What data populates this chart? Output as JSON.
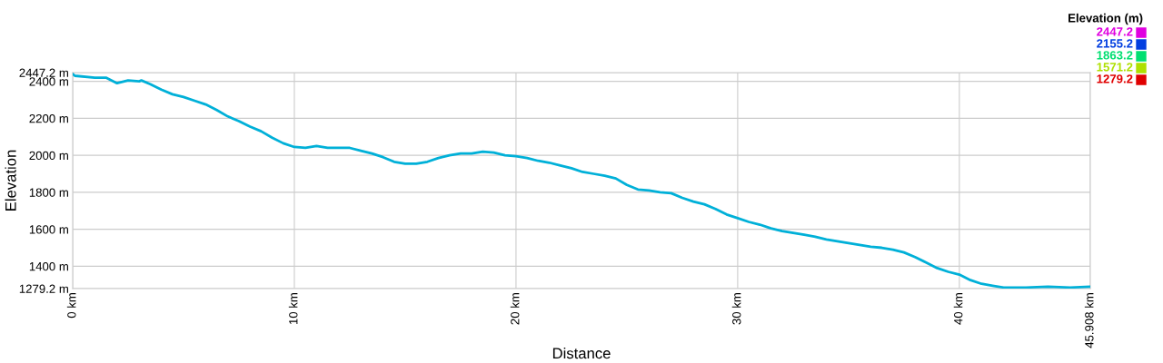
{
  "chart_data": {
    "type": "line",
    "xlabel": "Distance",
    "ylabel": "Elevation",
    "clabel": "Elevation (m)",
    "clim": [
      1279.2,
      2447.2
    ],
    "cticks": [
      2447.2,
      2155.2,
      1863.2,
      1571.2,
      1279.2
    ],
    "colors": [
      "#e000e0",
      "#0040e0",
      "#00e070",
      "#b0e000",
      "#e00000"
    ],
    "xlim": [
      0,
      45.908
    ],
    "xticks": [
      {
        "value": 0,
        "label": "0 km"
      },
      {
        "value": 10,
        "label": "10 km"
      },
      {
        "value": 20,
        "label": "20 km"
      },
      {
        "value": 30,
        "label": "30 km"
      },
      {
        "value": 40,
        "label": "40 km"
      },
      {
        "value": 45.908,
        "label": "45.908 km"
      }
    ],
    "ylim": [
      1279.2,
      2447.2
    ],
    "yticks": [
      {
        "value": 1279.2,
        "label": "1279.2 m"
      },
      {
        "value": 1400,
        "label": "1400 m"
      },
      {
        "value": 1600,
        "label": "1600 m"
      },
      {
        "value": 1800,
        "label": "1800 m"
      },
      {
        "value": 2000,
        "label": "2000 m"
      },
      {
        "value": 2200,
        "label": "2200 m"
      },
      {
        "value": 2400,
        "label": "2400 m"
      },
      {
        "value": 2447.2,
        "label": "2447.2 m"
      }
    ],
    "grid": true,
    "x": [
      0,
      0.1,
      1,
      1.5,
      2,
      2.5,
      3,
      3.1,
      3.5,
      4,
      4.5,
      5,
      5.5,
      6,
      6.5,
      7,
      7.5,
      8,
      8.5,
      9,
      9.5,
      10,
      10.5,
      11,
      11.5,
      12,
      12.5,
      13,
      13.5,
      14,
      14.5,
      15,
      15.5,
      16,
      16.5,
      17,
      17.5,
      18,
      18.5,
      19,
      19.5,
      20,
      20.5,
      21,
      21.5,
      22,
      22.5,
      23,
      23.5,
      24,
      24.5,
      25,
      25.5,
      26,
      26.5,
      27,
      27.5,
      28,
      28.5,
      29,
      29.5,
      30,
      30.5,
      31,
      31.5,
      32,
      32.5,
      33,
      33.5,
      34,
      34.5,
      35,
      35.5,
      36,
      36.5,
      37,
      37.5,
      38,
      38.5,
      39,
      39.5,
      40,
      40.5,
      41,
      41.5,
      42,
      43,
      44,
      45,
      45.908
    ],
    "series": [
      {
        "color": "#00b0d8",
        "values": [
          2440,
          2430,
          2420,
          2420,
          2390,
          2405,
          2400,
          2405,
          2385,
          2355,
          2330,
          2315,
          2295,
          2275,
          2245,
          2210,
          2185,
          2155,
          2130,
          2095,
          2065,
          2045,
          2040,
          2050,
          2040,
          2040,
          2040,
          2025,
          2010,
          1990,
          1965,
          1955,
          1955,
          1965,
          1985,
          2000,
          2010,
          2010,
          2020,
          2015,
          2000,
          1995,
          1985,
          1970,
          1960,
          1945,
          1930,
          1910,
          1900,
          1890,
          1875,
          1840,
          1815,
          1810,
          1800,
          1795,
          1770,
          1750,
          1735,
          1710,
          1680,
          1660,
          1640,
          1625,
          1605,
          1590,
          1580,
          1570,
          1560,
          1545,
          1535,
          1525,
          1515,
          1505,
          1500,
          1490,
          1475,
          1450,
          1420,
          1390,
          1370,
          1355,
          1325,
          1305,
          1295,
          1285,
          1285,
          1290,
          1285,
          1290
        ]
      }
    ]
  }
}
